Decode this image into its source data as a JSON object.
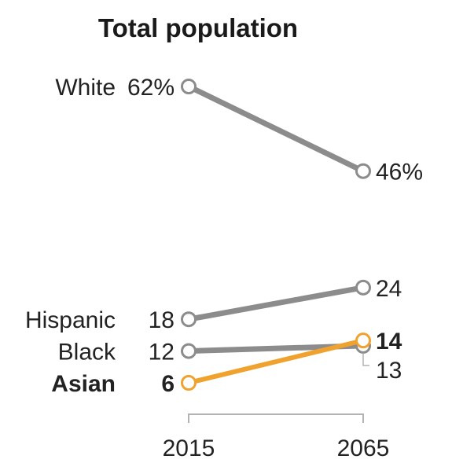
{
  "chart_data": {
    "type": "line",
    "title": "Total population",
    "x": [
      "2015",
      "2065"
    ],
    "series": [
      {
        "name": "White",
        "values": [
          62,
          46
        ],
        "start_label": "62%",
        "end_label": "46%",
        "color": "#8c8c8c",
        "highlight": false
      },
      {
        "name": "Hispanic",
        "values": [
          18,
          24
        ],
        "start_label": "18",
        "end_label": "24",
        "color": "#8c8c8c",
        "highlight": false
      },
      {
        "name": "Black",
        "values": [
          12,
          13
        ],
        "start_label": "12",
        "end_label": "13",
        "color": "#8c8c8c",
        "highlight": false
      },
      {
        "name": "Asian",
        "values": [
          6,
          14
        ],
        "start_label": "6",
        "end_label": "14",
        "color": "#f0a22e",
        "highlight": true
      }
    ],
    "ylim": [
      0,
      70
    ],
    "grid": false,
    "legend": "none"
  }
}
